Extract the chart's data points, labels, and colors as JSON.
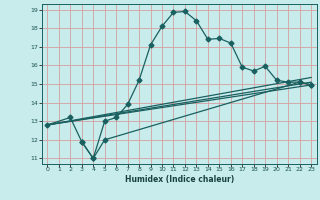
{
  "title": "",
  "xlabel": "Humidex (Indice chaleur)",
  "bg_color": "#c8ecec",
  "grid_color": "#d4a0a0",
  "line_color": "#1a6060",
  "xlim": [
    -0.5,
    23.5
  ],
  "ylim": [
    10.7,
    19.3
  ],
  "xticks": [
    0,
    1,
    2,
    3,
    4,
    5,
    6,
    7,
    8,
    9,
    10,
    11,
    12,
    13,
    14,
    15,
    16,
    17,
    18,
    19,
    20,
    21,
    22,
    23
  ],
  "yticks": [
    11,
    12,
    13,
    14,
    15,
    16,
    17,
    18,
    19
  ],
  "line1_x": [
    0,
    2,
    3,
    4,
    5,
    6,
    7,
    8,
    9,
    10,
    11,
    12,
    13,
    14,
    15,
    16,
    17,
    18,
    19,
    20,
    21,
    22,
    23
  ],
  "line1_y": [
    12.8,
    13.2,
    11.9,
    11.0,
    13.0,
    13.2,
    13.9,
    15.2,
    17.1,
    18.1,
    18.85,
    18.9,
    18.4,
    17.4,
    17.45,
    17.2,
    15.9,
    15.7,
    15.95,
    15.2,
    15.1,
    15.1,
    14.95
  ],
  "line2_x": [
    3,
    4,
    5,
    22,
    23
  ],
  "line2_y": [
    11.9,
    11.0,
    12.0,
    15.1,
    14.95
  ],
  "line3_x": [
    0,
    23
  ],
  "line3_y": [
    12.8,
    14.95
  ],
  "line4_x": [
    0,
    23
  ],
  "line4_y": [
    12.8,
    15.1
  ],
  "line5_x": [
    0,
    23
  ],
  "line5_y": [
    12.8,
    15.35
  ],
  "marker_size": 2.5,
  "linewidth": 0.9
}
